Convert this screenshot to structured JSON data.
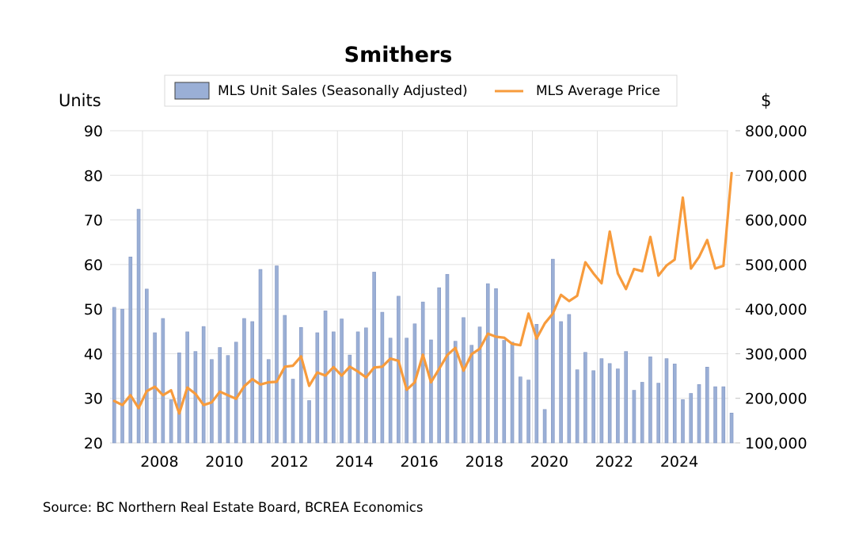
{
  "chart_data": {
    "type": "bar+line",
    "title": "Smithers",
    "source": "Source:  BC Northern Real Estate Board, BCREA Economics",
    "left_axis": {
      "label": "Units",
      "range": [
        20,
        90
      ],
      "ticks": [
        20,
        30,
        40,
        50,
        60,
        70,
        80,
        90
      ],
      "tick_labels": [
        "20",
        "30",
        "40",
        "50",
        "60",
        "70",
        "80",
        "90"
      ]
    },
    "right_axis": {
      "label": "$",
      "range": [
        100000,
        800000
      ],
      "ticks": [
        100000,
        200000,
        300000,
        400000,
        500000,
        600000,
        700000,
        800000
      ],
      "tick_labels": [
        "100,000",
        "200,000",
        "300,000",
        "400,000",
        "500,000",
        "600,000",
        "700,000",
        "800,000"
      ]
    },
    "x_axis": {
      "start": "2007 Q1",
      "end": "2026 Q1",
      "frequency": "quarterly",
      "tick_labels": [
        "2008",
        "2010",
        "2012",
        "2014",
        "2016",
        "2018",
        "2020",
        "2022",
        "2024"
      ],
      "tick_years": [
        2008,
        2010,
        2012,
        2014,
        2016,
        2018,
        2020,
        2022,
        2024
      ]
    },
    "grid": true,
    "legend_position": "top",
    "legend": [
      {
        "name": "MLS Unit Sales (Seasonally Adjusted)",
        "type": "bar"
      },
      {
        "name": "MLS Average Price",
        "type": "line"
      }
    ],
    "colors": {
      "bar_fill": "#9AAFD6",
      "bar_edge": "#8497C2",
      "line": "#F79B3C",
      "grid": "#E0E0E0"
    },
    "series": [
      {
        "name": "MLS Unit Sales (Seasonally Adjusted)",
        "axis": "left",
        "values": [
          50.4,
          50.0,
          61.7,
          72.4,
          54.5,
          44.7,
          47.9,
          29.7,
          40.2,
          44.9,
          40.5,
          46.1,
          38.7,
          41.4,
          39.6,
          42.6,
          47.9,
          47.2,
          58.9,
          38.7,
          59.7,
          48.6,
          34.3,
          45.9,
          29.5,
          44.7,
          49.6,
          44.9,
          47.8,
          39.7,
          44.9,
          45.8,
          58.3,
          49.3,
          43.5,
          52.9,
          43.5,
          46.7,
          51.6,
          43.1,
          54.8,
          57.8,
          42.8,
          48.1,
          41.9,
          46.0,
          55.7,
          54.6,
          43.0,
          42.6,
          34.8,
          34.1,
          46.6,
          27.5,
          61.2,
          47.2,
          48.8,
          36.4,
          40.3,
          36.2,
          38.9,
          37.8,
          36.6,
          40.5,
          31.8,
          33.6,
          39.3,
          33.4,
          38.9,
          37.7,
          29.7,
          31.1,
          33.1,
          37.0,
          32.6,
          32.6,
          26.7
        ]
      },
      {
        "name": "MLS Average Price",
        "axis": "right",
        "values": [
          194000,
          185000,
          207000,
          178000,
          216000,
          226000,
          207000,
          218000,
          166000,
          224000,
          210000,
          185000,
          191000,
          215000,
          207000,
          199000,
          227000,
          243000,
          231000,
          236000,
          237000,
          271000,
          273000,
          294000,
          228000,
          258000,
          251000,
          270000,
          251000,
          271000,
          260000,
          247000,
          269000,
          271000,
          289000,
          284000,
          219000,
          236000,
          298000,
          236000,
          266000,
          297000,
          313000,
          262000,
          299000,
          311000,
          345000,
          338000,
          336000,
          322000,
          319000,
          390000,
          334000,
          368000,
          390000,
          432000,
          418000,
          430000,
          505000,
          480000,
          458000,
          574000,
          480000,
          445000,
          490000,
          485000,
          562000,
          475000,
          498000,
          511000,
          650000,
          491000,
          517000,
          555000,
          491000,
          497000,
          705000
        ]
      }
    ]
  }
}
